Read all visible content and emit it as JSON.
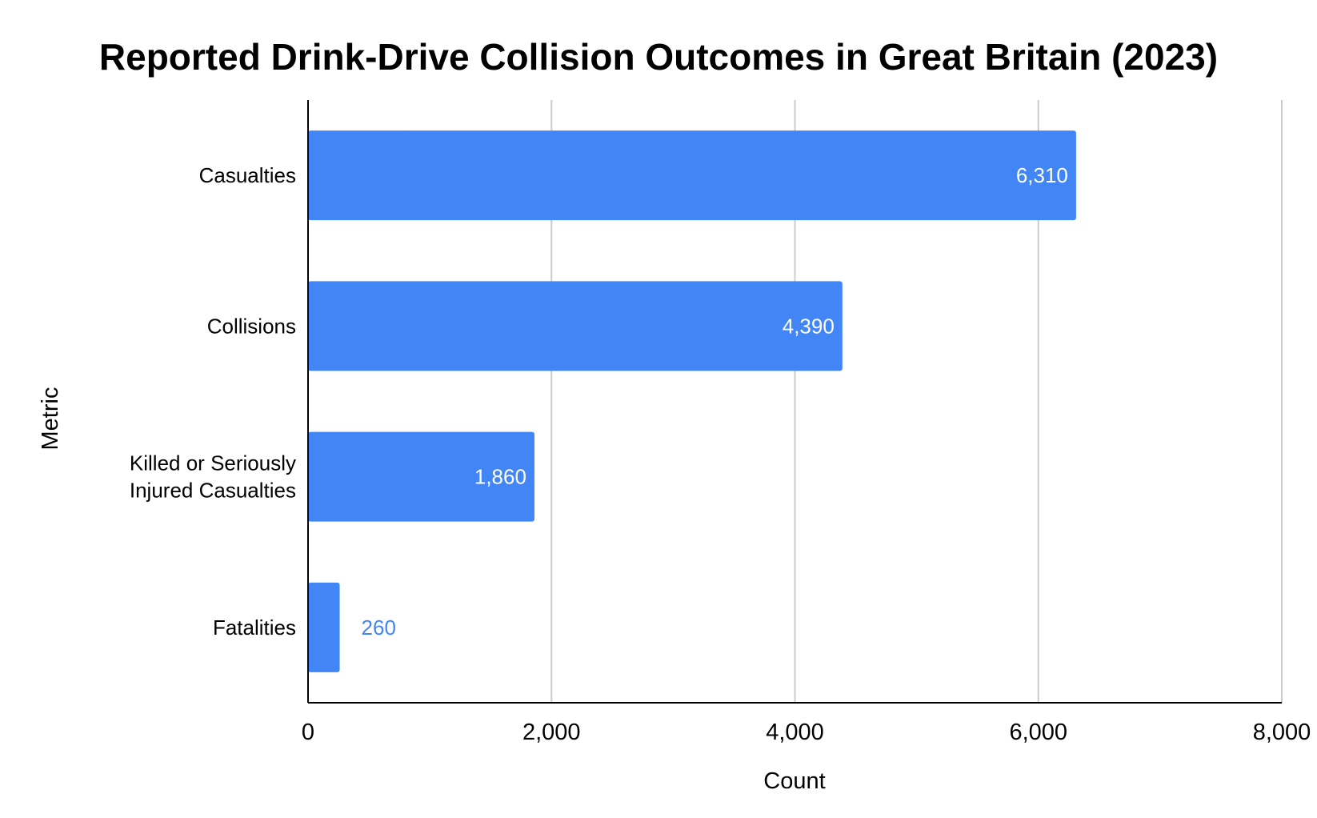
{
  "chart_data": {
    "type": "bar",
    "orientation": "horizontal",
    "title": "Reported Drink-Drive Collision Outcomes in Great Britain (2023)",
    "xlabel": "Count",
    "ylabel": "Metric",
    "categories": [
      [
        "Casualties"
      ],
      [
        "Collisions"
      ],
      [
        "Killed or Seriously",
        "Injured Casualties"
      ],
      [
        "Fatalities"
      ]
    ],
    "values": [
      6310,
      4390,
      1860,
      260
    ],
    "data_labels": [
      "6,310",
      "4,390",
      "1,860",
      "260"
    ],
    "xlim": [
      0,
      8000
    ],
    "xticks": [
      0,
      2000,
      4000,
      6000,
      8000
    ],
    "xtick_labels": [
      "0",
      "2,000",
      "4,000",
      "6,000",
      "8,000"
    ],
    "grid": true,
    "legend": "none",
    "colors": {
      "bar": "#4285f4",
      "label_inside": "#ffffff",
      "label_outside": "#4285f4",
      "grid": "#cccccc",
      "axis": "#000000"
    }
  }
}
